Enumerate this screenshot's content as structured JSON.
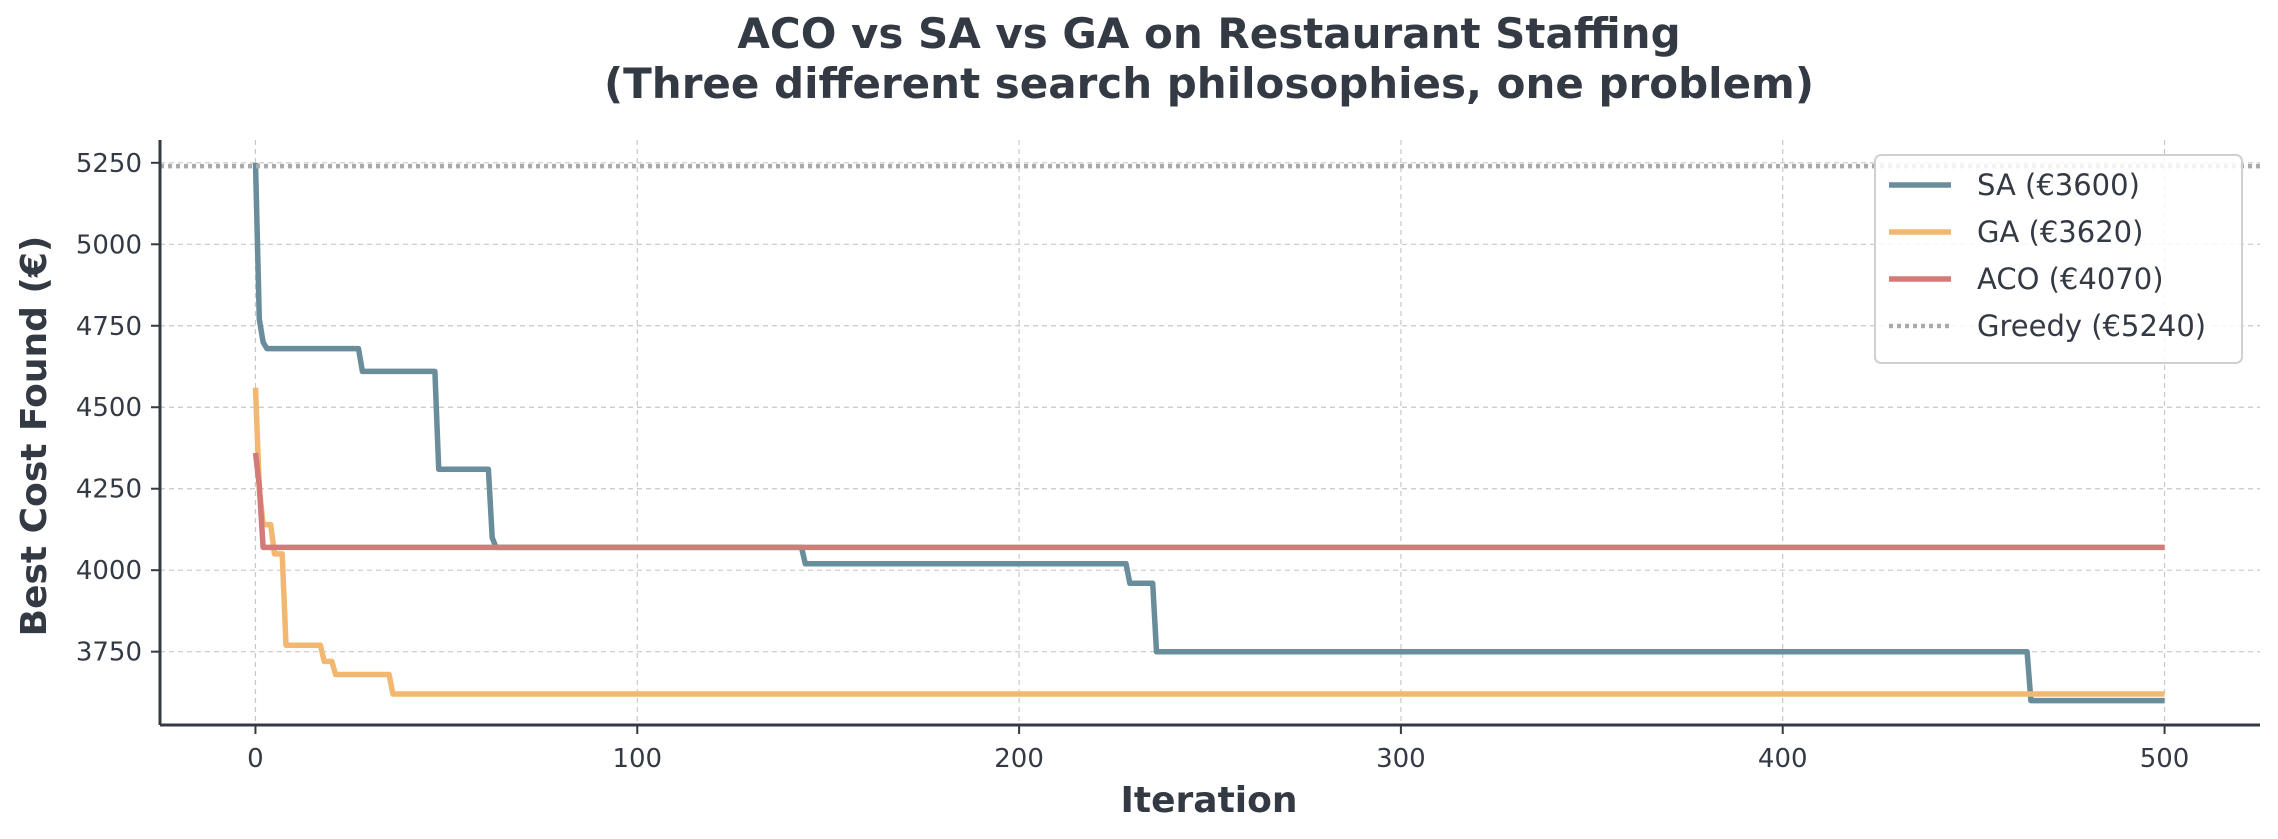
{
  "chart_data": {
    "type": "line",
    "title": "ACO vs SA vs GA on Restaurant Staffing",
    "subtitle": "(Three different search philosophies, one problem)",
    "xlabel": "Iteration",
    "ylabel": "Best Cost Found (€)",
    "xlim": [
      -25,
      525
    ],
    "ylim": [
      3525,
      5320
    ],
    "x_ticks": [
      0,
      100,
      200,
      300,
      400,
      500
    ],
    "y_ticks": [
      3750,
      4000,
      4250,
      4500,
      4750,
      5000,
      5250
    ],
    "grid": true,
    "legend_position": "top-right",
    "series": [
      {
        "name": "SA (€3600)",
        "color": "#6a8d9c",
        "style": "solid",
        "points": [
          [
            0,
            5250
          ],
          [
            1,
            4770
          ],
          [
            2,
            4700
          ],
          [
            3,
            4680
          ],
          [
            27,
            4680
          ],
          [
            28,
            4610
          ],
          [
            47,
            4610
          ],
          [
            48,
            4310
          ],
          [
            61,
            4310
          ],
          [
            62,
            4100
          ],
          [
            63,
            4070
          ],
          [
            143,
            4070
          ],
          [
            144,
            4020
          ],
          [
            228,
            4020
          ],
          [
            229,
            3960
          ],
          [
            235,
            3960
          ],
          [
            236,
            3750
          ],
          [
            464,
            3750
          ],
          [
            465,
            3600
          ],
          [
            500,
            3600
          ]
        ]
      },
      {
        "name": "GA (€3620)",
        "color": "#f2b872",
        "style": "solid",
        "points": [
          [
            0,
            4560
          ],
          [
            1,
            4250
          ],
          [
            2,
            4140
          ],
          [
            4,
            4140
          ],
          [
            5,
            4050
          ],
          [
            7,
            4050
          ],
          [
            8,
            3770
          ],
          [
            17,
            3770
          ],
          [
            18,
            3720
          ],
          [
            20,
            3720
          ],
          [
            21,
            3680
          ],
          [
            35,
            3680
          ],
          [
            36,
            3620
          ],
          [
            500,
            3620
          ]
        ]
      },
      {
        "name": "ACO (€4070)",
        "color": "#d47a78",
        "style": "solid",
        "points": [
          [
            0,
            4360
          ],
          [
            1,
            4260
          ],
          [
            2,
            4070
          ],
          [
            500,
            4070
          ]
        ]
      },
      {
        "name": "Greedy (€5240)",
        "color": "#aaaaaa",
        "style": "dotted",
        "y": 5240
      }
    ]
  }
}
